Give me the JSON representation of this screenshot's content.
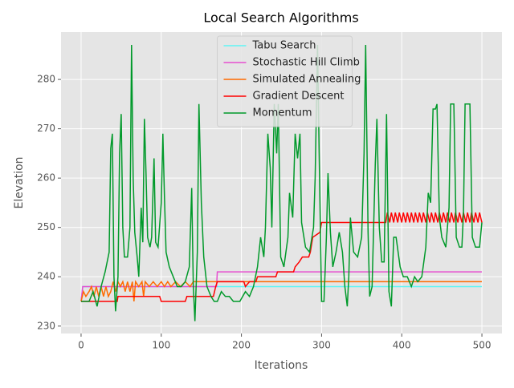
{
  "chart_data": {
    "type": "line",
    "title": "Local Search Algorithms",
    "x_label": "Iterations",
    "y_label": "Elevation",
    "xlim": [
      -25,
      525
    ],
    "ylim": [
      228.5,
      289.6
    ],
    "xticks": [
      0,
      100,
      200,
      300,
      400,
      500
    ],
    "yticks": [
      230,
      240,
      250,
      260,
      270,
      280
    ],
    "grid": true,
    "legend": "upper center",
    "series": [
      {
        "name": "Tabu Search",
        "color": "#5ff5f5",
        "x": [
          0,
          2,
          500
        ],
        "values": [
          235,
          238,
          238
        ]
      },
      {
        "name": "Stochastic Hill Climb",
        "color": "#e64fd0",
        "x": [
          0,
          2,
          169,
          170,
          500
        ],
        "values": [
          235,
          238,
          238,
          241,
          241
        ]
      },
      {
        "name": "Simulated Annealing",
        "color": "#ff6a00",
        "x": [
          0,
          3,
          6,
          10,
          13,
          16,
          19,
          22,
          25,
          28,
          31,
          34,
          37,
          40,
          43,
          46,
          49,
          52,
          55,
          58,
          61,
          64,
          66,
          68,
          72,
          76,
          78,
          80,
          85,
          90,
          95,
          100,
          104,
          108,
          112,
          118,
          124,
          130,
          136,
          140,
          500
        ],
        "values": [
          235,
          237,
          236,
          237,
          238,
          236,
          238,
          236,
          238,
          236,
          238,
          236,
          237,
          239,
          237,
          239,
          238,
          239,
          237,
          239,
          237,
          239,
          235,
          239,
          238,
          239,
          236,
          239,
          238,
          239,
          238,
          239,
          238,
          239,
          238,
          239,
          238,
          239,
          238,
          239,
          239
        ]
      },
      {
        "name": "Gradient Descent",
        "color": "#ff0000",
        "x": [
          0,
          45,
          46,
          98,
          100,
          130,
          132,
          165,
          168,
          170,
          203,
          205,
          210,
          218,
          220,
          243,
          245,
          265,
          267,
          272,
          276,
          284,
          286,
          289,
          298,
          300,
          380,
          382,
          385,
          387,
          390,
          392,
          395,
          397,
          400,
          402,
          405,
          407,
          410,
          412,
          415,
          417,
          420,
          422,
          425,
          427,
          430,
          432,
          435,
          437,
          440,
          442,
          445,
          447,
          450,
          452,
          455,
          457,
          460,
          462,
          465,
          467,
          470,
          472,
          475,
          477,
          480,
          482,
          485,
          487,
          490,
          492,
          495,
          497,
          500
        ],
        "values": [
          235,
          235,
          236,
          236,
          235,
          235,
          236,
          236,
          238,
          239,
          239,
          238,
          239,
          239,
          240,
          240,
          241,
          241,
          242,
          243,
          244,
          244,
          245,
          248,
          249,
          251,
          251,
          253,
          251,
          253,
          251,
          253,
          251,
          253,
          251,
          253,
          251,
          253,
          251,
          253,
          251,
          253,
          251,
          253,
          251,
          253,
          251,
          253,
          251,
          253,
          251,
          253,
          251,
          253,
          251,
          253,
          251,
          253,
          251,
          253,
          251,
          253,
          251,
          253,
          251,
          253,
          251,
          253,
          251,
          253,
          251,
          253,
          251,
          253,
          251
        ]
      },
      {
        "name": "Momentum",
        "color": "#00992a",
        "x": [
          0,
          10,
          15,
          20,
          25,
          30,
          35,
          37,
          39,
          41,
          43,
          46,
          48,
          50,
          52,
          54,
          58,
          61,
          63,
          65,
          67,
          70,
          72,
          75,
          77,
          79,
          81,
          83,
          86,
          88,
          91,
          93,
          96,
          100,
          102,
          104,
          106,
          110,
          115,
          120,
          125,
          130,
          135,
          138,
          140,
          142,
          145,
          147,
          150,
          153,
          157,
          162,
          166,
          170,
          175,
          180,
          185,
          190,
          198,
          205,
          210,
          215,
          220,
          224,
          228,
          230,
          233,
          236,
          238,
          241,
          244,
          246,
          249,
          253,
          258,
          260,
          264,
          267,
          270,
          273,
          275,
          280,
          285,
          290,
          292,
          295,
          297,
          300,
          303,
          306,
          308,
          311,
          314,
          318,
          322,
          326,
          329,
          332,
          334,
          336,
          340,
          345,
          350,
          353,
          355,
          358,
          360,
          363,
          367,
          369,
          372,
          375,
          378,
          381,
          384,
          387,
          390,
          393,
          398,
          402,
          407,
          412,
          416,
          420,
          425,
          430,
          433,
          436,
          439,
          442,
          444,
          447,
          450,
          455,
          459,
          461,
          465,
          468,
          472,
          475,
          477,
          479,
          485,
          488,
          492,
          497,
          500
        ],
        "values": [
          235,
          235,
          237,
          234,
          238,
          241,
          245,
          266,
          269,
          240,
          233,
          240,
          265,
          273,
          250,
          244,
          244,
          250,
          287,
          260,
          249,
          244,
          240,
          254,
          247,
          272,
          261,
          248,
          246,
          248,
          264,
          247,
          246,
          255,
          269,
          256,
          245,
          242,
          240,
          238,
          238,
          239,
          242,
          258,
          238,
          231,
          245,
          275,
          255,
          244,
          238,
          236,
          235,
          235,
          237,
          236,
          236,
          235,
          235,
          237,
          236,
          238,
          242,
          248,
          244,
          250,
          269,
          262,
          250,
          275,
          265,
          275,
          244,
          242,
          248,
          257,
          252,
          269,
          264,
          269,
          251,
          246,
          245,
          250,
          260,
          287,
          265,
          235,
          235,
          248,
          261,
          249,
          242,
          245,
          249,
          245,
          238,
          234,
          240,
          252,
          245,
          244,
          248,
          265,
          287,
          249,
          236,
          238,
          263,
          272,
          250,
          243,
          243,
          273,
          237,
          234,
          248,
          248,
          242,
          240,
          240,
          238,
          240,
          239,
          240,
          246,
          257,
          255,
          274,
          274,
          275,
          252,
          248,
          246,
          254,
          275,
          275,
          248,
          246,
          246,
          253,
          275,
          275,
          248,
          246,
          246,
          251
        ]
      }
    ]
  }
}
